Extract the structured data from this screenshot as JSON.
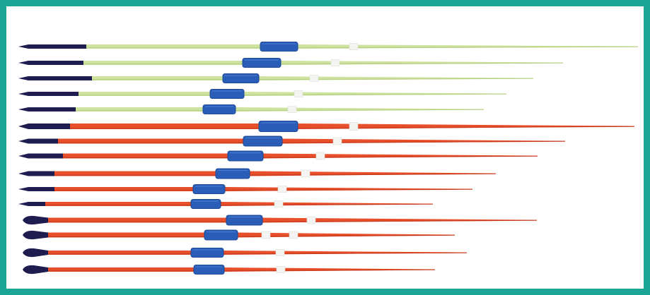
{
  "image": {
    "subject": "javelin-set",
    "colors": {
      "frame": "#1aa596",
      "background": "#ffffff",
      "tip": "#1f1d4f",
      "grip": "#2a5db8",
      "grip_edge": "#1e4894",
      "band": "#f4f4f2"
    },
    "javelins": [
      {
        "shaft": "#cfe3a0",
        "shade": "#b5cf82"
      },
      {
        "shaft": "#cfe3a0",
        "shade": "#b5cf82"
      },
      {
        "shaft": "#cfe3a0",
        "shade": "#b5cf82"
      },
      {
        "shaft": "#cfe3a0",
        "shade": "#b5cf82"
      },
      {
        "shaft": "#cfe3a0",
        "shade": "#b5cf82"
      },
      {
        "shaft": "#e8502c",
        "shade": "#c63a1d"
      },
      {
        "shaft": "#e8502c",
        "shade": "#c63a1d"
      },
      {
        "shaft": "#e8502c",
        "shade": "#c63a1d"
      },
      {
        "shaft": "#e8502c",
        "shade": "#c63a1d"
      },
      {
        "shaft": "#e8502c",
        "shade": "#c63a1d"
      },
      {
        "shaft": "#e8502c",
        "shade": "#c63a1d"
      },
      {
        "shaft": "#e8502c",
        "shade": "#c63a1d"
      },
      {
        "shaft": "#e8502c",
        "shade": "#c63a1d"
      },
      {
        "shaft": "#e8502c",
        "shade": "#c63a1d"
      },
      {
        "shaft": "#e8502c",
        "shade": "#c63a1d"
      }
    ]
  }
}
